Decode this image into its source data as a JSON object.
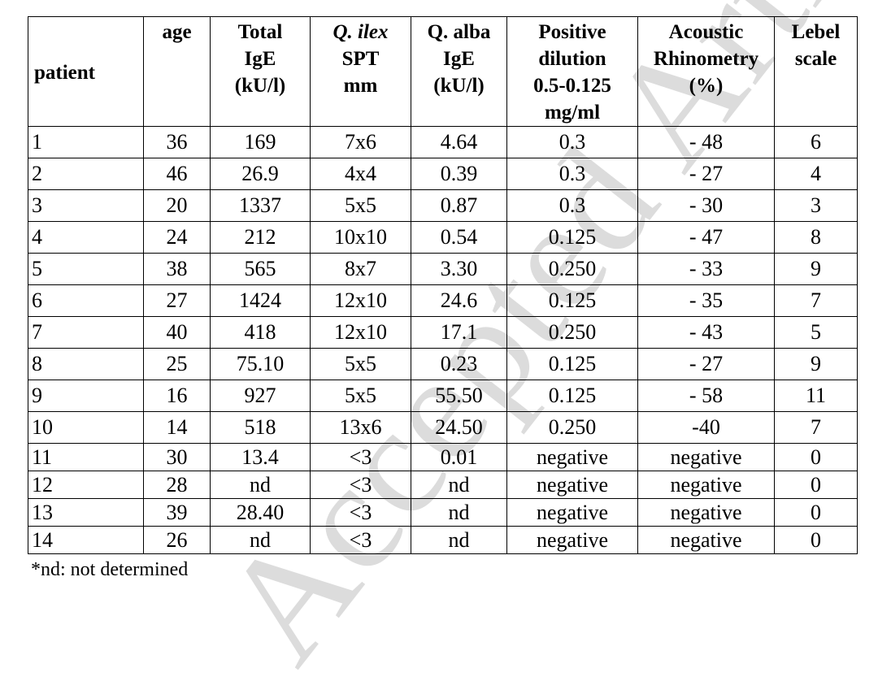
{
  "watermark": "Accepted Article",
  "headers": [
    {
      "lines": [
        "patient"
      ],
      "italic": false
    },
    {
      "lines": [
        "age"
      ],
      "italic": false
    },
    {
      "lines": [
        "Total",
        "IgE",
        "(kU/l)"
      ],
      "italic": false
    },
    {
      "lines": [
        "Q. ilex",
        "SPT",
        "mm"
      ],
      "italic": true
    },
    {
      "lines": [
        "Q. alba",
        "IgE",
        "(kU/l)"
      ],
      "italic": false
    },
    {
      "lines": [
        "Positive",
        "dilution",
        "0.5-0.125",
        "mg/ml"
      ],
      "italic": false
    },
    {
      "lines": [
        "Acoustic",
        "Rhinometry",
        "(%)"
      ],
      "italic": false
    },
    {
      "lines": [
        "Lebel",
        "scale"
      ],
      "italic": false
    }
  ],
  "rows": [
    [
      "1",
      "36",
      "169",
      "7x6",
      "4.64",
      "0.3",
      "- 48",
      "6"
    ],
    [
      "2",
      "46",
      "26.9",
      "4x4",
      "0.39",
      "0.3",
      "- 27",
      "4"
    ],
    [
      "3",
      "20",
      "1337",
      "5x5",
      "0.87",
      "0.3",
      "- 30",
      "3"
    ],
    [
      "4",
      "24",
      "212",
      "10x10",
      "0.54",
      "0.125",
      "- 47",
      "8"
    ],
    [
      "5",
      "38",
      "565",
      "8x7",
      "3.30",
      "0.250",
      "- 33",
      "9"
    ],
    [
      "6",
      "27",
      "1424",
      "12x10",
      "24.6",
      "0.125",
      "- 35",
      "7"
    ],
    [
      "7",
      "40",
      "418",
      "12x10",
      "17.1",
      "0.250",
      "- 43",
      "5"
    ],
    [
      "8",
      "25",
      "75.10",
      "5x5",
      "0.23",
      "0.125",
      "- 27",
      "9"
    ],
    [
      "9",
      "16",
      "927",
      "5x5",
      "55.50",
      "0.125",
      "- 58",
      "11"
    ],
    [
      "10",
      "14",
      "518",
      "13x6",
      "24.50",
      "0.250",
      "-40",
      "7"
    ],
    [
      "11",
      "30",
      "13.4",
      "<3",
      "0.01",
      "negative",
      "negative",
      "0"
    ],
    [
      "12",
      "28",
      "nd",
      "<3",
      "nd",
      "negative",
      "negative",
      "0"
    ],
    [
      "13",
      "39",
      "28.40",
      "<3",
      "nd",
      "negative",
      "negative",
      "0"
    ],
    [
      "14",
      "26",
      "nd",
      "<3",
      "nd",
      "negative",
      "negative",
      "0"
    ]
  ],
  "footnote": "*nd: not determined"
}
